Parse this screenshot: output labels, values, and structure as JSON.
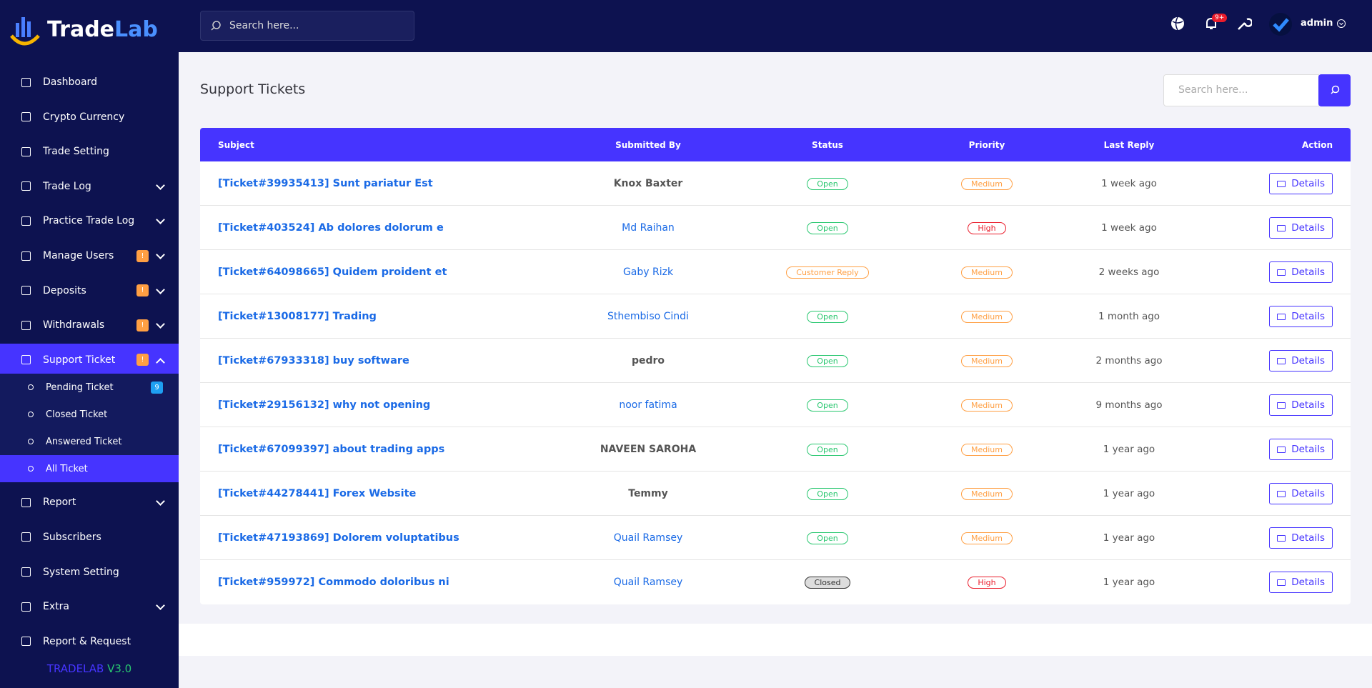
{
  "brand": {
    "name_a": "Trade",
    "name_b": "Lab"
  },
  "topbar": {
    "search_placeholder": "Search here...",
    "notification_count": "9+",
    "user": "admin"
  },
  "sidebar": {
    "items": [
      {
        "label": "Dashboard"
      },
      {
        "label": "Crypto Currency"
      },
      {
        "label": "Trade Setting"
      },
      {
        "label": "Trade Log",
        "chevron": "down"
      },
      {
        "label": "Practice Trade Log",
        "chevron": "down"
      },
      {
        "label": "Manage Users",
        "badge": "!",
        "chevron": "down"
      },
      {
        "label": "Deposits",
        "badge": "!",
        "chevron": "down"
      },
      {
        "label": "Withdrawals",
        "badge": "!",
        "chevron": "down"
      },
      {
        "label": "Support Ticket",
        "badge": "!",
        "chevron": "up",
        "active": true,
        "children": [
          {
            "label": "Pending Ticket",
            "badge": "9"
          },
          {
            "label": "Closed Ticket"
          },
          {
            "label": "Answered Ticket"
          },
          {
            "label": "All Ticket",
            "active": true
          }
        ]
      },
      {
        "label": "Report",
        "chevron": "down"
      },
      {
        "label": "Subscribers"
      },
      {
        "label": "System Setting"
      },
      {
        "label": "Extra",
        "chevron": "down"
      },
      {
        "label": "Report & Request"
      }
    ],
    "version_a": "TRADELAB",
    "version_b": "V3.0"
  },
  "page": {
    "title": "Support Tickets",
    "search_placeholder": "Search here..."
  },
  "table": {
    "headers": [
      "Subject",
      "Submitted By",
      "Status",
      "Priority",
      "Last Reply",
      "Action"
    ],
    "action_label": "Details",
    "rows": [
      {
        "subject": "[Ticket#39935413] Sunt pariatur Est",
        "submitted_by": "Knox Baxter",
        "user_link": false,
        "status": "Open",
        "status_color": "#28c76f",
        "priority": "Medium",
        "priority_color": "#ff9f43",
        "last_reply": "1 week ago"
      },
      {
        "subject": "[Ticket#403524] Ab dolores dolorum e",
        "submitted_by": "Md Raihan",
        "user_link": true,
        "status": "Open",
        "status_color": "#28c76f",
        "priority": "High",
        "priority_color": "#ea1c2b",
        "last_reply": "1 week ago"
      },
      {
        "subject": "[Ticket#64098665] Quidem proident et",
        "submitted_by": "Gaby Rizk",
        "user_link": true,
        "status": "Customer Reply",
        "status_color": "#ff9f43",
        "priority": "Medium",
        "priority_color": "#ff9f43",
        "last_reply": "2 weeks ago"
      },
      {
        "subject": "[Ticket#13008177] Trading",
        "submitted_by": "Sthembiso Cindi",
        "user_link": true,
        "status": "Open",
        "status_color": "#28c76f",
        "priority": "Medium",
        "priority_color": "#ff9f43",
        "last_reply": "1 month ago"
      },
      {
        "subject": "[Ticket#67933318] buy software",
        "submitted_by": "pedro",
        "user_link": false,
        "status": "Open",
        "status_color": "#28c76f",
        "priority": "Medium",
        "priority_color": "#ff9f43",
        "last_reply": "2 months ago"
      },
      {
        "subject": "[Ticket#29156132] why not opening",
        "submitted_by": "noor fatima",
        "user_link": true,
        "status": "Open",
        "status_color": "#28c76f",
        "priority": "Medium",
        "priority_color": "#ff9f43",
        "last_reply": "9 months ago"
      },
      {
        "subject": "[Ticket#67099397] about trading apps",
        "submitted_by": "NAVEEN SAROHA",
        "user_link": false,
        "status": "Open",
        "status_color": "#28c76f",
        "priority": "Medium",
        "priority_color": "#ff9f43",
        "last_reply": "1 year ago"
      },
      {
        "subject": "[Ticket#44278441] Forex Website",
        "submitted_by": "Temmy",
        "user_link": false,
        "status": "Open",
        "status_color": "#28c76f",
        "priority": "Medium",
        "priority_color": "#ff9f43",
        "last_reply": "1 year ago"
      },
      {
        "subject": "[Ticket#47193869] Dolorem voluptatibus",
        "submitted_by": "Quail Ramsey",
        "user_link": true,
        "status": "Open",
        "status_color": "#28c76f",
        "priority": "Medium",
        "priority_color": "#ff9f43",
        "last_reply": "1 year ago"
      },
      {
        "subject": "[Ticket#959972] Commodo doloribus ni",
        "submitted_by": "Quail Ramsey",
        "user_link": true,
        "status": "Closed",
        "status_color": "#333333",
        "priority": "High",
        "priority_color": "#ea1c2b",
        "last_reply": "1 year ago"
      }
    ]
  }
}
